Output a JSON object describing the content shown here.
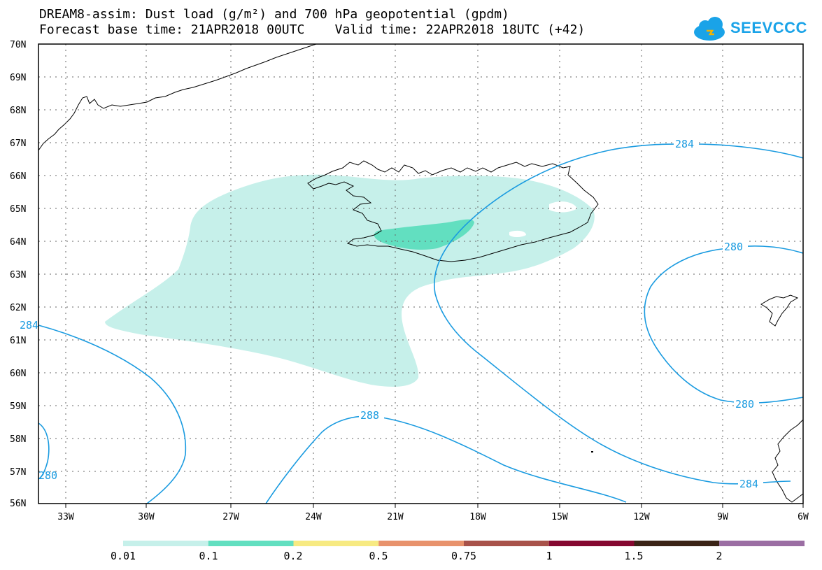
{
  "title": {
    "line1": "DREAM8-assim: Dust load (g/m²) and 700 hPa geopotential (gpdm)",
    "line2": "Forecast base time: 21APR2018 00UTC    Valid time: 22APR2018 18UTC (+42)"
  },
  "logo": {
    "text": "SEEVCCC",
    "icon": "cloud-icon",
    "color": "#1aa3e8"
  },
  "axes": {
    "lat_labels": [
      "70N",
      "69N",
      "68N",
      "67N",
      "66N",
      "65N",
      "64N",
      "63N",
      "62N",
      "61N",
      "60N",
      "59N",
      "58N",
      "57N",
      "56N"
    ],
    "lon_labels": [
      "33W",
      "30W",
      "27W",
      "24W",
      "21W",
      "18W",
      "15W",
      "12W",
      "9W",
      "6W"
    ]
  },
  "contours": {
    "color": "#1a9be0",
    "labels": [
      "284",
      "280",
      "280",
      "288",
      "284",
      "284",
      "280"
    ]
  },
  "colorbar": {
    "colors": [
      "#c6f0ea",
      "#62dfc0",
      "#f7ea82",
      "#e8926c",
      "#a8524a",
      "#850830",
      "#3b2417",
      "#9b6ea3"
    ],
    "labels": [
      "0.01",
      "0.1",
      "0.2",
      "0.5",
      "0.75",
      "1",
      "1.5",
      "2"
    ]
  }
}
